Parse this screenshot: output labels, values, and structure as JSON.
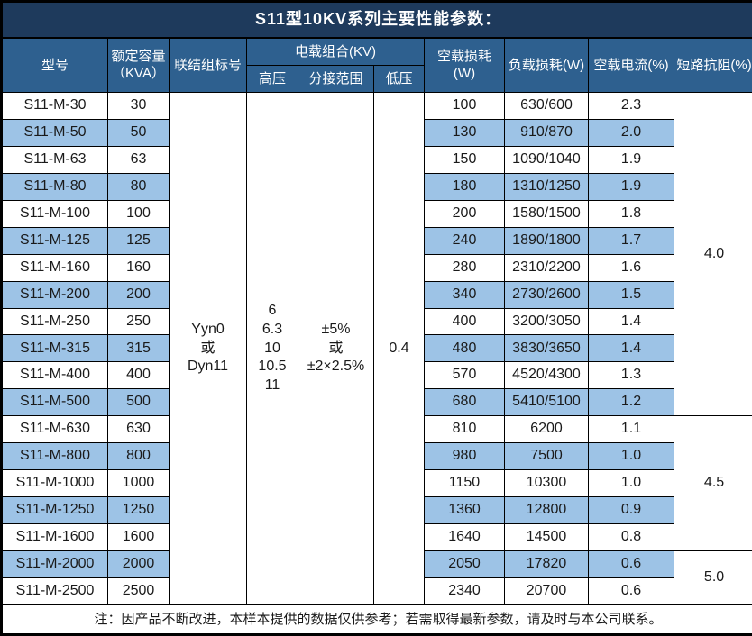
{
  "title": "S11型10KV系列主要性能参数：",
  "header": {
    "model": "型号",
    "capacity_line1": "额定容量",
    "capacity_line2": "（KVA）",
    "connection": "联结组标号",
    "voltage_group": "电载组合(KV)",
    "hv": "高压",
    "tap_range": "分接范围",
    "lv": "低压",
    "no_load_loss": "空载损耗(W)",
    "load_loss": "负载损耗(W)",
    "no_load_current": "空载电流(%)",
    "impedance": "短路抗阻(%)"
  },
  "merged": {
    "connection_lines": [
      "Yyn0",
      "或",
      "Dyn11"
    ],
    "hv_lines": [
      "6",
      "6.3",
      "10",
      "10.5",
      "11"
    ],
    "tap_lines": [
      "±5%",
      "或",
      "±2×2.5%"
    ],
    "lv": "0.4"
  },
  "impedance_groups": [
    {
      "value": "4.0",
      "span": 12
    },
    {
      "value": "4.5",
      "span": 5
    },
    {
      "value": "5.0",
      "span": 2
    }
  ],
  "rows": [
    {
      "model": "S11-M-30",
      "capacity": "30",
      "no_load_loss": "100",
      "load_loss": "630/600",
      "no_load_current": "2.3"
    },
    {
      "model": "S11-M-50",
      "capacity": "50",
      "no_load_loss": "130",
      "load_loss": "910/870",
      "no_load_current": "2.0"
    },
    {
      "model": "S11-M-63",
      "capacity": "63",
      "no_load_loss": "150",
      "load_loss": "1090/1040",
      "no_load_current": "1.9"
    },
    {
      "model": "S11-M-80",
      "capacity": "80",
      "no_load_loss": "180",
      "load_loss": "1310/1250",
      "no_load_current": "1.9"
    },
    {
      "model": "S11-M-100",
      "capacity": "100",
      "no_load_loss": "200",
      "load_loss": "1580/1500",
      "no_load_current": "1.8"
    },
    {
      "model": "S11-M-125",
      "capacity": "125",
      "no_load_loss": "240",
      "load_loss": "1890/1800",
      "no_load_current": "1.7"
    },
    {
      "model": "S11-M-160",
      "capacity": "160",
      "no_load_loss": "280",
      "load_loss": "2310/2200",
      "no_load_current": "1.6"
    },
    {
      "model": "S11-M-200",
      "capacity": "200",
      "no_load_loss": "340",
      "load_loss": "2730/2600",
      "no_load_current": "1.5"
    },
    {
      "model": "S11-M-250",
      "capacity": "250",
      "no_load_loss": "400",
      "load_loss": "3200/3050",
      "no_load_current": "1.4"
    },
    {
      "model": "S11-M-315",
      "capacity": "315",
      "no_load_loss": "480",
      "load_loss": "3830/3650",
      "no_load_current": "1.4"
    },
    {
      "model": "S11-M-400",
      "capacity": "400",
      "no_load_loss": "570",
      "load_loss": "4520/4300",
      "no_load_current": "1.3"
    },
    {
      "model": "S11-M-500",
      "capacity": "500",
      "no_load_loss": "680",
      "load_loss": "5410/5100",
      "no_load_current": "1.2"
    },
    {
      "model": "S11-M-630",
      "capacity": "630",
      "no_load_loss": "810",
      "load_loss": "6200",
      "no_load_current": "1.1"
    },
    {
      "model": "S11-M-800",
      "capacity": "800",
      "no_load_loss": "980",
      "load_loss": "7500",
      "no_load_current": "1.0"
    },
    {
      "model": "S11-M-1000",
      "capacity": "1000",
      "no_load_loss": "1150",
      "load_loss": "10300",
      "no_load_current": "1.0"
    },
    {
      "model": "S11-M-1250",
      "capacity": "1250",
      "no_load_loss": "1360",
      "load_loss": "12800",
      "no_load_current": "0.9"
    },
    {
      "model": "S11-M-1600",
      "capacity": "1600",
      "no_load_loss": "1640",
      "load_loss": "14500",
      "no_load_current": "0.8"
    },
    {
      "model": "S11-M-2000",
      "capacity": "2000",
      "no_load_loss": "2050",
      "load_loss": "17820",
      "no_load_current": "0.6"
    },
    {
      "model": "S11-M-2500",
      "capacity": "2500",
      "no_load_loss": "2340",
      "load_loss": "20700",
      "no_load_current": "0.6"
    }
  ],
  "footer_note": "注：因产品不断改进，本样本提供的数据仅供参考；若需取得最新参数，请及时与本公司联系。",
  "colors": {
    "title_bg": "#1E3A5C",
    "header_bg": "#2E608F",
    "row_alt_bg": "#9DC3E6",
    "border": "#000000",
    "text": "#1A1A1A"
  }
}
